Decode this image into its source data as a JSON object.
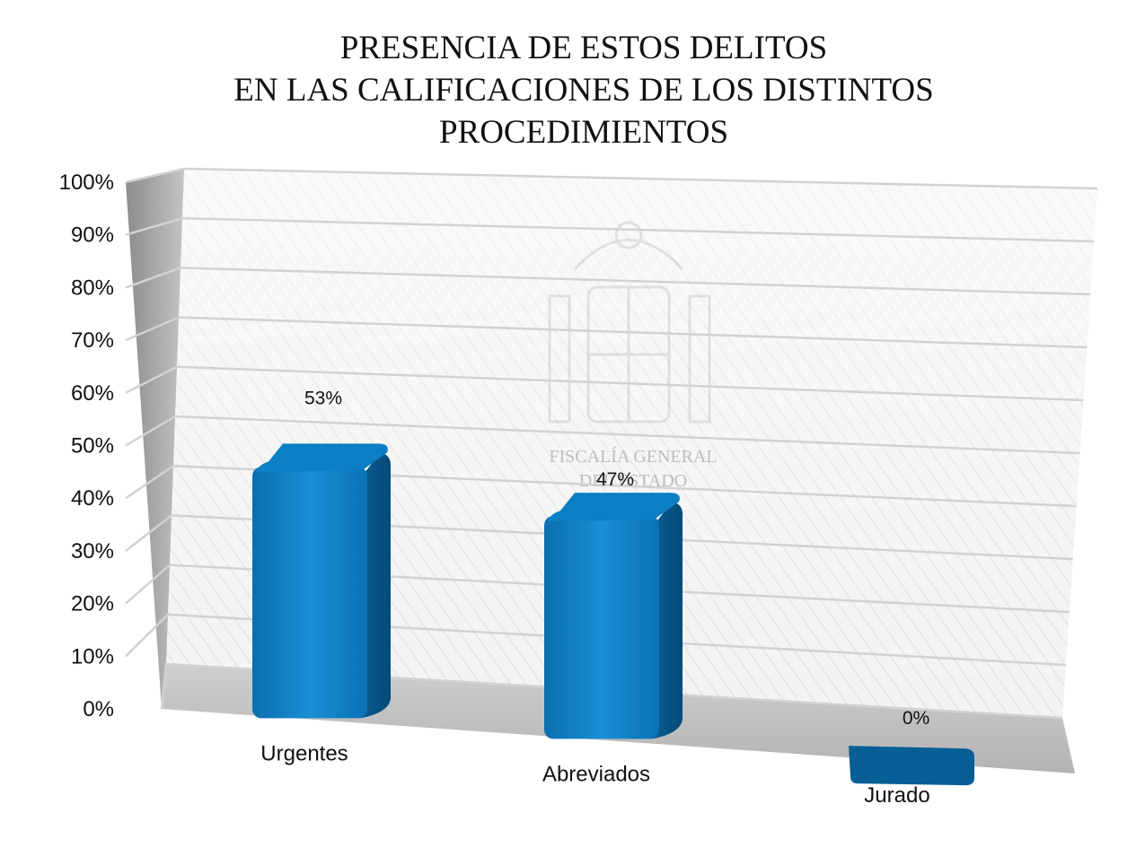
{
  "chart_data": {
    "type": "bar",
    "title_lines": [
      "PRESENCIA DE ESTOS DELITOS",
      "EN LAS CALIFICACIONES DE LOS DISTINTOS",
      "PROCEDIMIENTOS"
    ],
    "categories": [
      "Urgentes",
      "Abreviados",
      "Jurado"
    ],
    "values": [
      53,
      47,
      0
    ],
    "data_labels": [
      "53%",
      "47%",
      "0%"
    ],
    "y_ticks": [
      "0%",
      "10%",
      "20%",
      "30%",
      "40%",
      "50%",
      "60%",
      "70%",
      "80%",
      "90%",
      "100%"
    ],
    "ylim": [
      0,
      100
    ],
    "grid": true,
    "legend": "none",
    "style": "3d-column",
    "bar_color": "#0a7cc0",
    "watermark_text": [
      "FISCALÍA GENERAL",
      "DEL ESTADO"
    ]
  }
}
